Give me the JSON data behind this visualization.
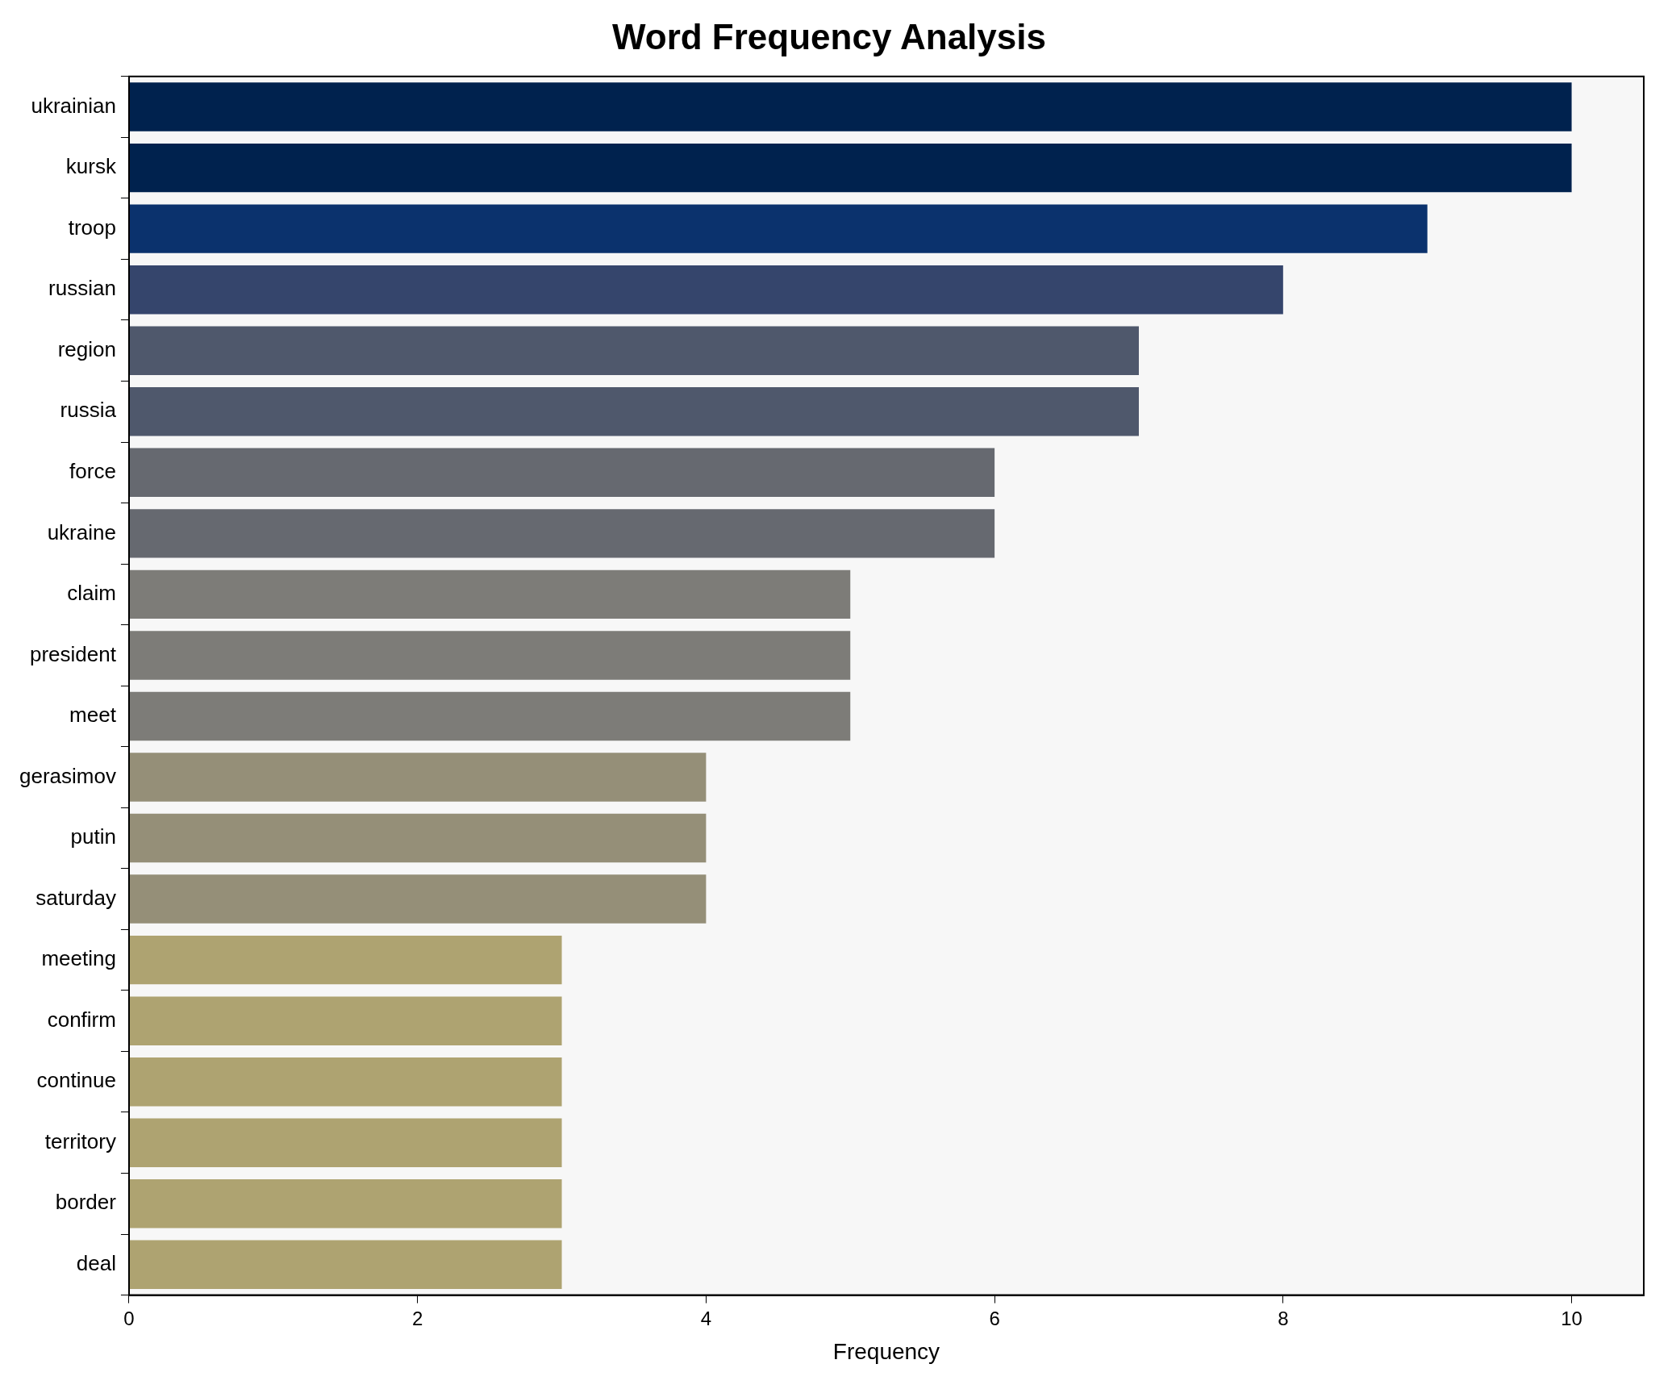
{
  "chart_data": {
    "type": "bar",
    "orientation": "horizontal",
    "title": "Word Frequency Analysis",
    "xlabel": "Frequency",
    "categories": [
      "ukrainian",
      "kursk",
      "troop",
      "russian",
      "region",
      "russia",
      "force",
      "ukraine",
      "claim",
      "president",
      "meet",
      "gerasimov",
      "putin",
      "saturday",
      "meeting",
      "confirm",
      "continue",
      "territory",
      "border",
      "deal"
    ],
    "values": [
      10,
      10,
      9,
      8,
      7,
      7,
      6,
      6,
      5,
      5,
      5,
      4,
      4,
      4,
      3,
      3,
      3,
      3,
      3,
      3
    ],
    "colors": [
      "#00224e",
      "#00224e",
      "#0b326d",
      "#35456c",
      "#4f586c",
      "#4f586c",
      "#666970",
      "#666970",
      "#7d7c78",
      "#7d7c78",
      "#7d7c78",
      "#958f78",
      "#958f78",
      "#958f78",
      "#aea371",
      "#aea371",
      "#aea371",
      "#aea371",
      "#aea371",
      "#aea371"
    ],
    "xlim": [
      0,
      10.5
    ],
    "xticks": [
      0,
      2,
      4,
      6,
      8,
      10
    ],
    "grid": false,
    "legend": false
  }
}
